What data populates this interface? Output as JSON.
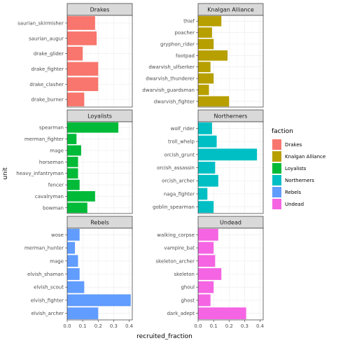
{
  "chart_data": {
    "type": "bar",
    "orientation": "horizontal",
    "facet_grid": "3 rows x 2 columns",
    "xlabel": "recruited_fraction",
    "ylabel": "unit",
    "xlim": [
      0,
      0.42
    ],
    "x_ticks": [
      0.0,
      0.1,
      0.2,
      0.3,
      0.4
    ],
    "x_tick_labels": [
      "0.0",
      "0.1",
      "0.2",
      "0.3",
      "0.4"
    ],
    "grid": true,
    "legend": {
      "title": "faction",
      "position": "right",
      "entries": [
        "Drakes",
        "Knalgan Alliance",
        "Loyalists",
        "Northerners",
        "Rebels",
        "Undead"
      ]
    },
    "colors": {
      "Drakes": "#F8766D",
      "Knalgan Alliance": "#B79F00",
      "Loyalists": "#00BA38",
      "Northerners": "#00BFC4",
      "Rebels": "#619CFF",
      "Undead": "#F564E3"
    },
    "panels": [
      {
        "title": "Drakes",
        "units": [
          "saurian_skirmisher",
          "saurian_augur",
          "drake_glider",
          "drake_fighter",
          "drake_clasher",
          "drake_burner"
        ],
        "values": [
          0.18,
          0.19,
          0.1,
          0.2,
          0.2,
          0.11
        ]
      },
      {
        "title": "Knalgan Alliance",
        "units": [
          "thief",
          "poacher",
          "gryphon_rider",
          "footpad",
          "dwarvish_ulfserker",
          "dwarvish_thunderer",
          "dwarvish_guardsman",
          "dwarvish_fighter"
        ],
        "values": [
          0.15,
          0.09,
          0.1,
          0.19,
          0.08,
          0.1,
          0.07,
          0.2
        ]
      },
      {
        "title": "Loyalists",
        "units": [
          "spearman",
          "merman_fighter",
          "mage",
          "horseman",
          "heavy_infantryman",
          "fencer",
          "cavalryman",
          "bowman"
        ],
        "values": [
          0.33,
          0.06,
          0.09,
          0.07,
          0.07,
          0.08,
          0.18,
          0.13
        ]
      },
      {
        "title": "Northerners",
        "units": [
          "wolf_rider",
          "troll_whelp",
          "orcish_grunt",
          "orcish_assassin",
          "orcish_archer",
          "naga_fighter",
          "goblin_spearman"
        ],
        "values": [
          0.09,
          0.12,
          0.38,
          0.11,
          0.13,
          0.06,
          0.1
        ]
      },
      {
        "title": "Rebels",
        "units": [
          "wose",
          "merman_hunter",
          "mage",
          "elvish_shaman",
          "elvish_scout",
          "elvish_fighter",
          "elvish_archer"
        ],
        "values": [
          0.08,
          0.05,
          0.07,
          0.08,
          0.11,
          0.41,
          0.2
        ]
      },
      {
        "title": "Undead",
        "units": [
          "walking_corpse",
          "vampire_bat",
          "skeleton_archer",
          "skeleton",
          "ghoul",
          "ghost",
          "dark_adept"
        ],
        "values": [
          0.13,
          0.1,
          0.11,
          0.15,
          0.1,
          0.08,
          0.31
        ]
      }
    ]
  }
}
